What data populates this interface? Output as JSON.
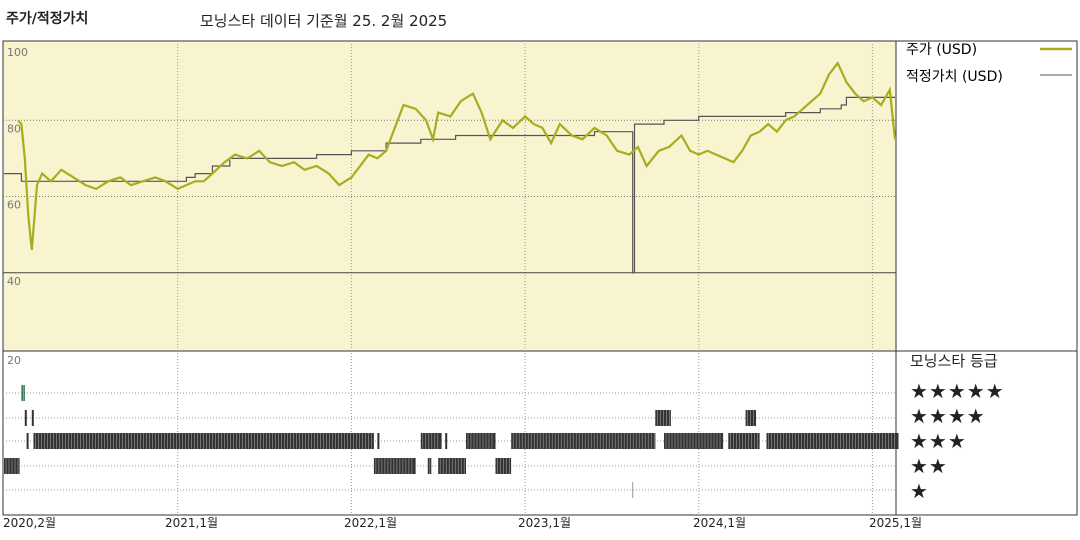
{
  "header": {
    "title": "주가/적정가치",
    "subtitle": "모닝스타 데이터 기준월 25. 2월 2025"
  },
  "colors": {
    "price": "#a9ac1e",
    "fair_value": "#555555",
    "panel_bg": "#f8f4d0",
    "rating_marks": "#333333",
    "five_star_mark": "#3b7a5a"
  },
  "legend": {
    "price": "주가 (USD)",
    "fair_value": "적정가치 (USD)"
  },
  "rating_panel": {
    "title": "모닝스타 등급",
    "levels": [
      "★★★★★",
      "★★★★",
      "★★★",
      "★★",
      "★"
    ],
    "y_tick": "20"
  },
  "chart_data": {
    "type": "line",
    "title": "주가/적정가치",
    "ylim": [
      20,
      100
    ],
    "y_ticks": [
      "100",
      "80",
      "60",
      "40"
    ],
    "x_ticks": [
      "2020,2월",
      "2021,1월",
      "2022,1월",
      "2023,1월",
      "2024,1월",
      "2025,1월"
    ],
    "grid": true,
    "legend_position": "right",
    "series": [
      {
        "name": "주가 (USD)",
        "points": [
          [
            2020.08,
            80
          ],
          [
            2020.1,
            79
          ],
          [
            2020.12,
            70
          ],
          [
            2020.14,
            55
          ],
          [
            2020.16,
            46
          ],
          [
            2020.19,
            63
          ],
          [
            2020.22,
            66
          ],
          [
            2020.27,
            64
          ],
          [
            2020.33,
            67
          ],
          [
            2020.4,
            65
          ],
          [
            2020.47,
            63
          ],
          [
            2020.53,
            62
          ],
          [
            2020.6,
            64
          ],
          [
            2020.67,
            65
          ],
          [
            2020.73,
            63
          ],
          [
            2020.8,
            64
          ],
          [
            2020.87,
            65
          ],
          [
            2020.93,
            64
          ],
          [
            2021.0,
            62
          ],
          [
            2021.05,
            63
          ],
          [
            2021.1,
            64
          ],
          [
            2021.15,
            64
          ],
          [
            2021.2,
            66
          ],
          [
            2021.27,
            69
          ],
          [
            2021.33,
            71
          ],
          [
            2021.4,
            70
          ],
          [
            2021.47,
            72
          ],
          [
            2021.53,
            69
          ],
          [
            2021.6,
            68
          ],
          [
            2021.67,
            69
          ],
          [
            2021.73,
            67
          ],
          [
            2021.8,
            68
          ],
          [
            2021.87,
            66
          ],
          [
            2021.93,
            63
          ],
          [
            2022.0,
            65
          ],
          [
            2022.05,
            68
          ],
          [
            2022.1,
            71
          ],
          [
            2022.15,
            70
          ],
          [
            2022.2,
            72
          ],
          [
            2022.25,
            78
          ],
          [
            2022.3,
            84
          ],
          [
            2022.37,
            83
          ],
          [
            2022.43,
            80
          ],
          [
            2022.47,
            75
          ],
          [
            2022.5,
            82
          ],
          [
            2022.57,
            81
          ],
          [
            2022.63,
            85
          ],
          [
            2022.7,
            87
          ],
          [
            2022.75,
            82
          ],
          [
            2022.8,
            75
          ],
          [
            2022.87,
            80
          ],
          [
            2022.93,
            78
          ],
          [
            2023.0,
            81
          ],
          [
            2023.05,
            79
          ],
          [
            2023.1,
            78
          ],
          [
            2023.15,
            74
          ],
          [
            2023.2,
            79
          ],
          [
            2023.27,
            76
          ],
          [
            2023.33,
            75
          ],
          [
            2023.4,
            78
          ],
          [
            2023.47,
            76
          ],
          [
            2023.53,
            72
          ],
          [
            2023.6,
            71
          ],
          [
            2023.65,
            73
          ],
          [
            2023.7,
            68
          ],
          [
            2023.77,
            72
          ],
          [
            2023.83,
            73
          ],
          [
            2023.9,
            76
          ],
          [
            2023.95,
            72
          ],
          [
            2024.0,
            71
          ],
          [
            2024.05,
            72
          ],
          [
            2024.1,
            71
          ],
          [
            2024.15,
            70
          ],
          [
            2024.2,
            69
          ],
          [
            2024.25,
            72
          ],
          [
            2024.3,
            76
          ],
          [
            2024.35,
            77
          ],
          [
            2024.4,
            79
          ],
          [
            2024.45,
            77
          ],
          [
            2024.5,
            80
          ],
          [
            2024.55,
            81
          ],
          [
            2024.6,
            83
          ],
          [
            2024.65,
            85
          ],
          [
            2024.7,
            87
          ],
          [
            2024.75,
            92
          ],
          [
            2024.8,
            95
          ],
          [
            2024.85,
            90
          ],
          [
            2024.9,
            87
          ],
          [
            2024.95,
            85
          ],
          [
            2025.0,
            86
          ],
          [
            2025.05,
            84
          ],
          [
            2025.1,
            88
          ],
          [
            2025.13,
            75
          ]
        ]
      },
      {
        "name": "적정가치 (USD)",
        "points": [
          [
            2020.0,
            66
          ],
          [
            2020.08,
            66
          ],
          [
            2020.1,
            64
          ],
          [
            2020.4,
            64
          ],
          [
            2020.95,
            64
          ],
          [
            2021.05,
            65
          ],
          [
            2021.1,
            66
          ],
          [
            2021.2,
            68
          ],
          [
            2021.3,
            70
          ],
          [
            2021.6,
            70
          ],
          [
            2021.8,
            71
          ],
          [
            2022.0,
            72
          ],
          [
            2022.2,
            74
          ],
          [
            2022.4,
            75
          ],
          [
            2022.6,
            76
          ],
          [
            2022.8,
            76
          ],
          [
            2023.0,
            76
          ],
          [
            2023.2,
            76
          ],
          [
            2023.4,
            77
          ],
          [
            2023.6,
            77
          ],
          [
            2023.62,
            40
          ],
          [
            2023.63,
            79
          ],
          [
            2023.8,
            80
          ],
          [
            2023.85,
            80
          ],
          [
            2024.0,
            81
          ],
          [
            2024.15,
            81
          ],
          [
            2024.3,
            81
          ],
          [
            2024.5,
            82
          ],
          [
            2024.7,
            83
          ],
          [
            2024.82,
            84
          ],
          [
            2024.85,
            86
          ],
          [
            2025.0,
            86
          ],
          [
            2025.13,
            86
          ]
        ]
      }
    ],
    "ratings": [
      {
        "stars": 5,
        "spans": [
          [
            2020.1,
            2020.12
          ]
        ]
      },
      {
        "stars": 4,
        "spans": [
          [
            2020.12,
            2020.13
          ],
          [
            2020.16,
            2020.17
          ],
          [
            2023.75,
            2023.84
          ],
          [
            2024.27,
            2024.33
          ]
        ]
      },
      {
        "stars": 3,
        "spans": [
          [
            2020.13,
            2020.14
          ],
          [
            2020.17,
            2022.13
          ],
          [
            2022.15,
            2022.16
          ],
          [
            2022.4,
            2022.52
          ],
          [
            2022.54,
            2022.55
          ],
          [
            2022.66,
            2022.83
          ],
          [
            2022.92,
            2023.75
          ],
          [
            2023.8,
            2024.14
          ],
          [
            2024.17,
            2024.35
          ],
          [
            2024.39,
            2025.15
          ]
        ]
      },
      {
        "stars": 2,
        "spans": [
          [
            2020.0,
            2020.09
          ],
          [
            2022.13,
            2022.37
          ],
          [
            2022.44,
            2022.46
          ],
          [
            2022.5,
            2022.66
          ],
          [
            2022.83,
            2022.92
          ]
        ]
      }
    ]
  }
}
